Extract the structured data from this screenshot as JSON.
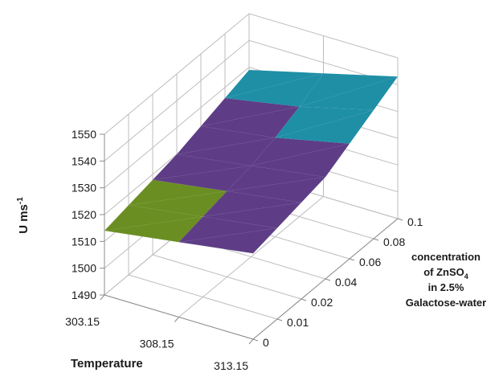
{
  "chart_data": {
    "type": "surface",
    "zlabel": "U ms",
    "zlabel_sup": "-1",
    "xlabel": "Temperature",
    "ylabel_lines": [
      "concentration",
      "of ZnSO",
      "in 2.5%",
      "Galactose-water"
    ],
    "ylabel_sub": "4",
    "x_ticks": [
      "303.15",
      "308.15",
      "313.15"
    ],
    "y_ticks": [
      "0",
      "0.01",
      "0.02",
      "0.04",
      "0.06",
      "0.08",
      "0.1"
    ],
    "z_ticks": [
      "1490",
      "1500",
      "1510",
      "1520",
      "1530",
      "1540",
      "1550"
    ],
    "zlim": [
      1490,
      1550
    ],
    "grid": true,
    "bands": [
      {
        "range": [
          1510,
          1520
        ],
        "color": "#6b8e23"
      },
      {
        "range": [
          1520,
          1530
        ],
        "color": "#5e3d86"
      },
      {
        "range": [
          1530,
          1540
        ],
        "color": "#1f8fa6"
      },
      {
        "range": [
          1540,
          1550
        ],
        "color": "#e8761f"
      }
    ],
    "values": [
      [
        1514,
        1516,
        1518,
        1520,
        1523,
        1526,
        1529
      ],
      [
        1518,
        1520,
        1522,
        1524,
        1527,
        1531,
        1536
      ],
      [
        1522,
        1524,
        1526,
        1528,
        1533,
        1538,
        1543
      ]
    ]
  }
}
